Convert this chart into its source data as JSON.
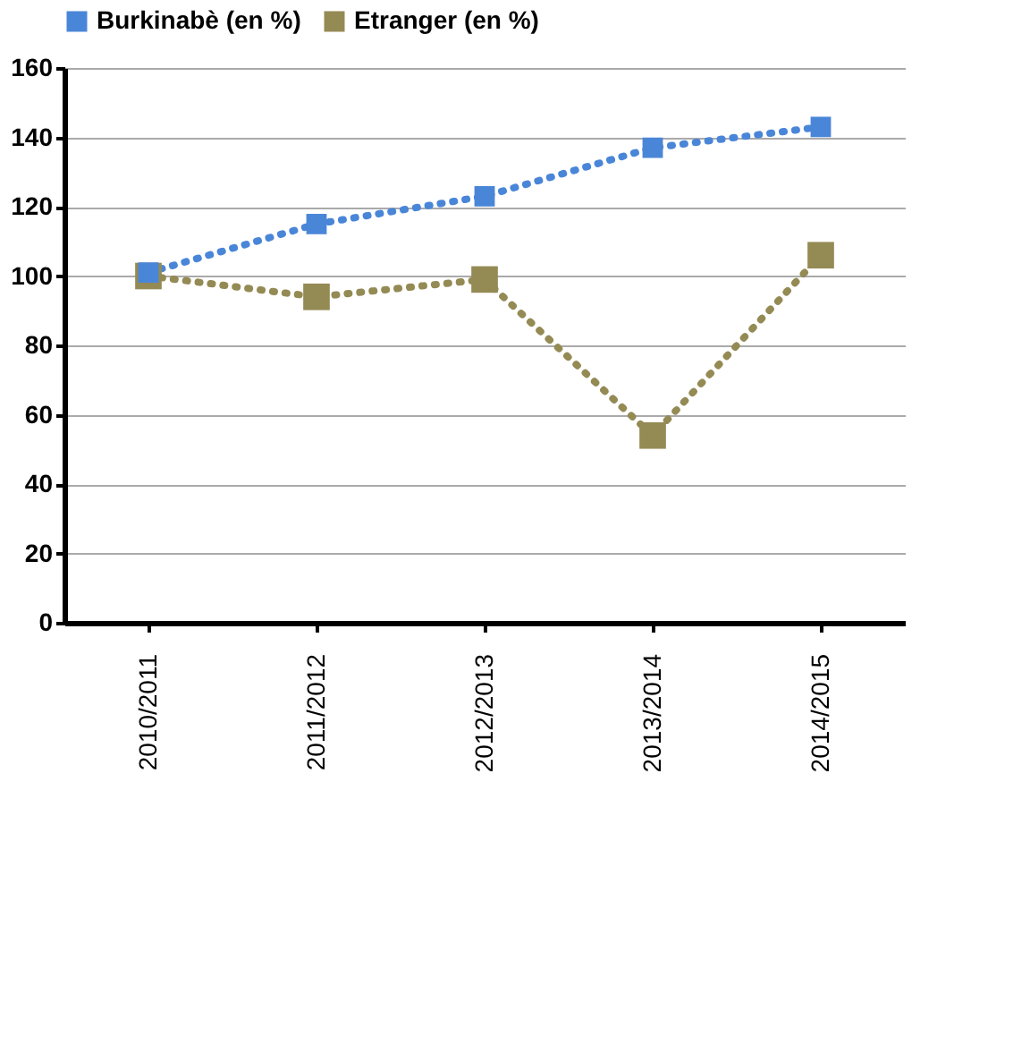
{
  "chart_data": {
    "type": "line",
    "categories": [
      "2010/2011",
      "2011/2012",
      "2012/2013",
      "2013/2014",
      "2014/2015"
    ],
    "series": [
      {
        "name": "Burkinabè (en %)",
        "color": "#4a86d8",
        "values": [
          101,
          115,
          123,
          137,
          143
        ]
      },
      {
        "name": "Etranger (en %)",
        "color": "#948a54",
        "values": [
          100,
          94,
          99,
          54,
          106
        ]
      }
    ],
    "ylim": [
      0,
      160
    ],
    "yticks": [
      0,
      20,
      40,
      60,
      80,
      100,
      120,
      140,
      160
    ],
    "grid": "y",
    "legend": "top",
    "marker": "square",
    "line_style": "dotted"
  }
}
